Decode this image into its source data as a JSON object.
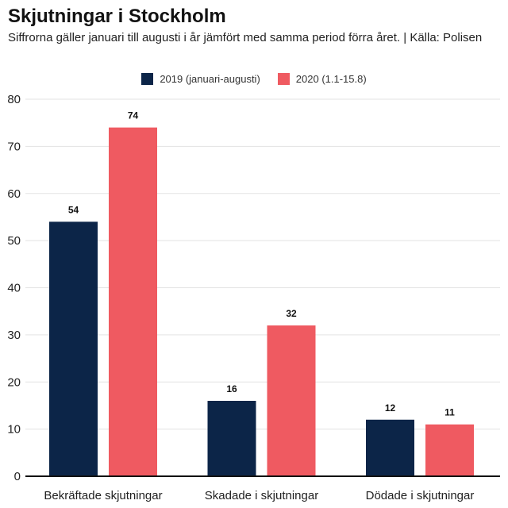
{
  "chart_data": {
    "type": "bar",
    "title": "Skjutningar i Stockholm",
    "subtitle": "Siffrorna gäller januari till augusti i år jämfört med samma period förra året. | Källa: Polisen",
    "categories": [
      "Bekräftade skjutningar",
      "Skadade i skjutningar",
      "Dödade i skjutningar"
    ],
    "series": [
      {
        "name": "2019 (januari-augusti)",
        "color": "#0c2548",
        "values": [
          54,
          16,
          12
        ]
      },
      {
        "name": "2020 (1.1-15.8)",
        "color": "#ef5a61",
        "values": [
          74,
          32,
          11
        ]
      }
    ],
    "ylim": [
      0,
      80
    ],
    "yticks": [
      0,
      10,
      20,
      30,
      40,
      50,
      60,
      70,
      80
    ],
    "xlabel": "",
    "ylabel": "",
    "legend": "top-center",
    "grid": true
  }
}
